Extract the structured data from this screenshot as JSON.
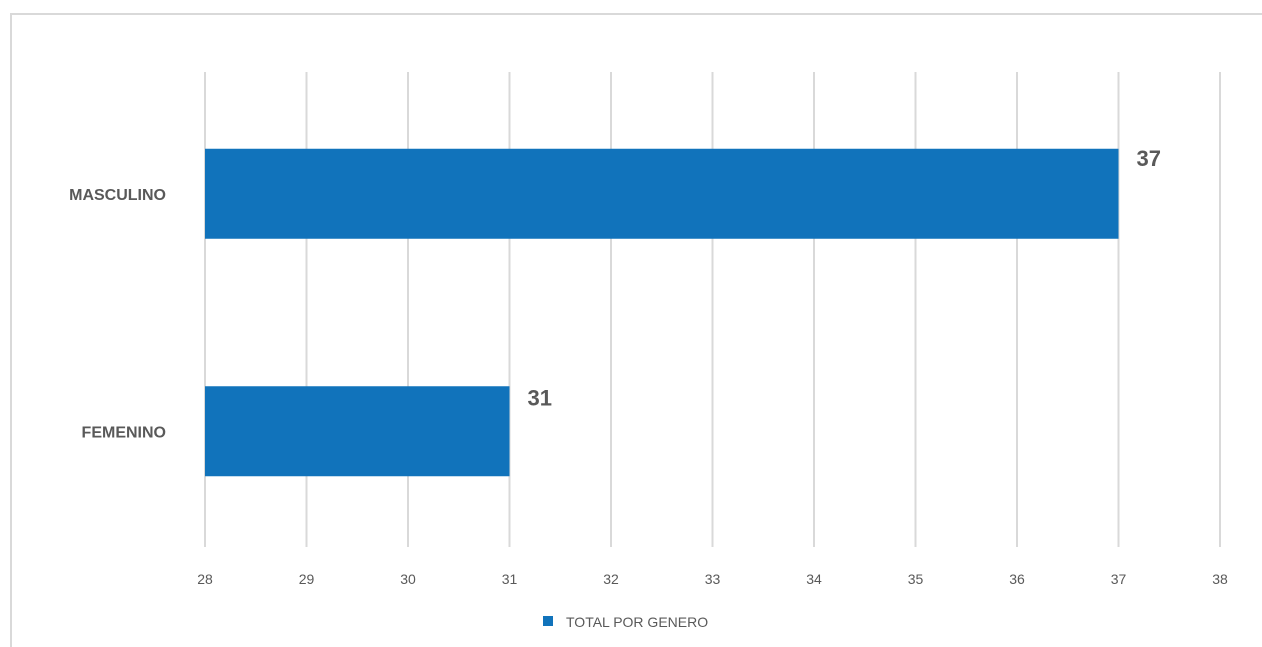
{
  "chart_data": {
    "type": "bar",
    "orientation": "horizontal",
    "categories": [
      "MASCULINO",
      "FEMENINO"
    ],
    "series": [
      {
        "name": "TOTAL POR GENERO",
        "values": [
          37,
          31
        ],
        "color": "#1173bb"
      }
    ],
    "data_labels": [
      "37",
      "31"
    ],
    "xlim": [
      28,
      38
    ],
    "xticks": [
      "28",
      "29",
      "30",
      "31",
      "32",
      "33",
      "34",
      "35",
      "36",
      "37",
      "38"
    ],
    "grid": "vertical",
    "legend_position": "bottom",
    "title": "",
    "xlabel": "",
    "ylabel": ""
  }
}
